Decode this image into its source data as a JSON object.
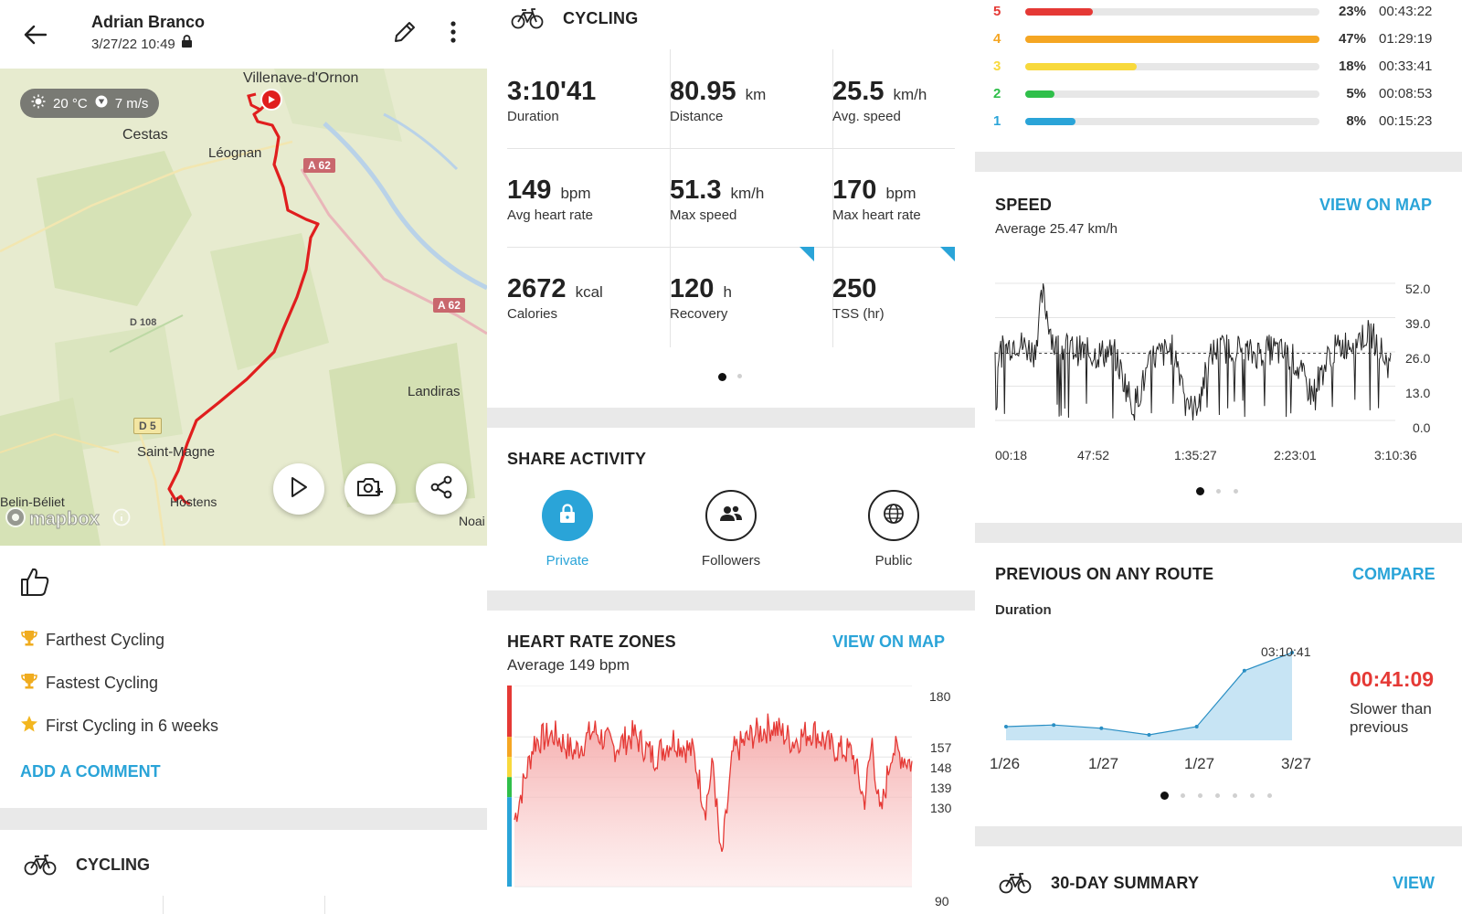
{
  "header": {
    "user_name": "Adrian Branco",
    "date": "3/27/22 10:49"
  },
  "map": {
    "weather_temp": "20 °C",
    "weather_wind": "7 m/s",
    "places": [
      "Villenave-d'Ornon",
      "Cestas",
      "Léognan",
      "D 108",
      "Landiras",
      "Saint-Magne",
      "Belin-Béliet",
      "Hostens",
      "Noai"
    ],
    "roads": [
      "A 62",
      "A 62",
      "D 5"
    ],
    "attribution": "mapbox",
    "route_color": "#e01e1e"
  },
  "achievements": [
    {
      "icon": "trophy-icon",
      "text": "Farthest Cycling"
    },
    {
      "icon": "trophy-icon",
      "text": "Fastest Cycling"
    },
    {
      "icon": "star-icon",
      "text": "First Cycling in 6 weeks"
    }
  ],
  "add_comment": "ADD A COMMENT",
  "activity_label": "CYCLING",
  "stats": [
    {
      "value": "3:10'41",
      "unit": "",
      "label": "Duration"
    },
    {
      "value": "80.95",
      "unit": "km",
      "label": "Distance"
    },
    {
      "value": "25.5",
      "unit": "km/h",
      "label": "Avg. speed"
    },
    {
      "value": "149",
      "unit": "bpm",
      "label": "Avg heart rate"
    },
    {
      "value": "51.3",
      "unit": "km/h",
      "label": "Max speed"
    },
    {
      "value": "170",
      "unit": "bpm",
      "label": "Max heart rate"
    },
    {
      "value": "2672",
      "unit": "kcal",
      "label": "Calories"
    },
    {
      "value": "120",
      "unit": "h",
      "label": "Recovery"
    },
    {
      "value": "250",
      "unit": "",
      "label": "TSS (hr)"
    }
  ],
  "share": {
    "title": "SHARE ACTIVITY",
    "options": [
      {
        "label": "Private",
        "selected": true
      },
      {
        "label": "Followers",
        "selected": false
      },
      {
        "label": "Public",
        "selected": false
      }
    ]
  },
  "heart_rate": {
    "title": "HEART RATE ZONES",
    "view_on_map": "VIEW ON MAP",
    "average": "Average 149 bpm",
    "y_ticks": [
      "180",
      "157",
      "148",
      "139",
      "130",
      "90"
    ],
    "zone_band_colors": [
      "#e53935",
      "#f5a623",
      "#f8d93c",
      "#2fbf4a",
      "#2aa4d8"
    ]
  },
  "zones": [
    {
      "zone": "5",
      "percent": "23%",
      "time": "00:43:22",
      "fraction": 0.23,
      "color": "#e53935"
    },
    {
      "zone": "4",
      "percent": "47%",
      "time": "01:29:19",
      "fraction": 1.0,
      "color": "#f5a623"
    },
    {
      "zone": "3",
      "percent": "18%",
      "time": "00:33:41",
      "fraction": 0.38,
      "color": "#f8d93c"
    },
    {
      "zone": "2",
      "percent": "5%",
      "time": "00:08:53",
      "fraction": 0.1,
      "color": "#2fbf4a"
    },
    {
      "zone": "1",
      "percent": "8%",
      "time": "00:15:23",
      "fraction": 0.17,
      "color": "#2aa4d8"
    }
  ],
  "speed": {
    "title": "SPEED",
    "view_on_map": "VIEW ON MAP",
    "average": "Average 25.47 km/h",
    "y_ticks": [
      "52.0",
      "39.0",
      "26.0",
      "13.0",
      "0.0"
    ],
    "x_ticks": [
      "00:18",
      "47:52",
      "1:35:27",
      "2:23:01",
      "3:10:36"
    ]
  },
  "previous": {
    "title": "PREVIOUS ON ANY ROUTE",
    "compare": "COMPARE",
    "metric": "Duration",
    "peak_label": "03:10:41",
    "delta": "00:41:09",
    "delta_caption": "Slower than previous",
    "x_ticks": [
      "1/26",
      "1/27",
      "1/27",
      "3/27"
    ]
  },
  "summary": {
    "title": "30-DAY SUMMARY",
    "view": "VIEW"
  },
  "chart_data": [
    {
      "type": "line",
      "title": "HEART RATE ZONES",
      "ylabel": "bpm",
      "yticks": [
        90,
        130,
        139,
        148,
        157,
        180
      ],
      "ylim": [
        90,
        180
      ],
      "x": [
        0,
        0.05,
        0.1,
        0.15,
        0.2,
        0.25,
        0.3,
        0.35,
        0.4,
        0.45,
        0.48,
        0.5,
        0.52,
        0.55,
        0.6,
        0.65,
        0.7,
        0.75,
        0.8,
        0.85,
        0.88,
        0.9,
        0.92,
        0.95,
        1.0
      ],
      "series": [
        {
          "values": [
            120,
            155,
            158,
            150,
            160,
            152,
            158,
            148,
            156,
            150,
            125,
            145,
            100,
            150,
            158,
            162,
            155,
            160,
            152,
            150,
            128,
            155,
            120,
            152,
            145
          ]
        }
      ]
    },
    {
      "type": "line",
      "title": "SPEED",
      "subtitle": "Average 25.47 km/h",
      "ylim": [
        0,
        52
      ],
      "yticks": [
        0,
        13,
        26,
        39,
        52
      ],
      "xticks": [
        "00:18",
        "47:52",
        "1:35:27",
        "2:23:01",
        "3:10:36"
      ],
      "x": [
        0,
        0.05,
        0.1,
        0.12,
        0.15,
        0.2,
        0.25,
        0.3,
        0.35,
        0.4,
        0.45,
        0.5,
        0.55,
        0.6,
        0.65,
        0.7,
        0.75,
        0.8,
        0.85,
        0.9,
        0.95,
        1.0
      ],
      "series": [
        {
          "values": [
            24,
            30,
            26,
            48,
            28,
            27,
            25,
            26,
            5,
            24,
            27,
            2,
            26,
            28,
            25,
            27,
            24,
            10,
            26,
            30,
            33,
            20
          ]
        }
      ]
    },
    {
      "type": "area",
      "title": "PREVIOUS ON ANY ROUTE",
      "ylabel": "Duration",
      "categories": [
        "1/26",
        "",
        "1/27",
        "",
        "1/27",
        "",
        "3/27"
      ],
      "values": [
        0.1,
        0.12,
        0.08,
        0.0,
        0.1,
        0.78,
        1.0
      ],
      "labels": {
        "peak": "03:10:41"
      }
    }
  ]
}
